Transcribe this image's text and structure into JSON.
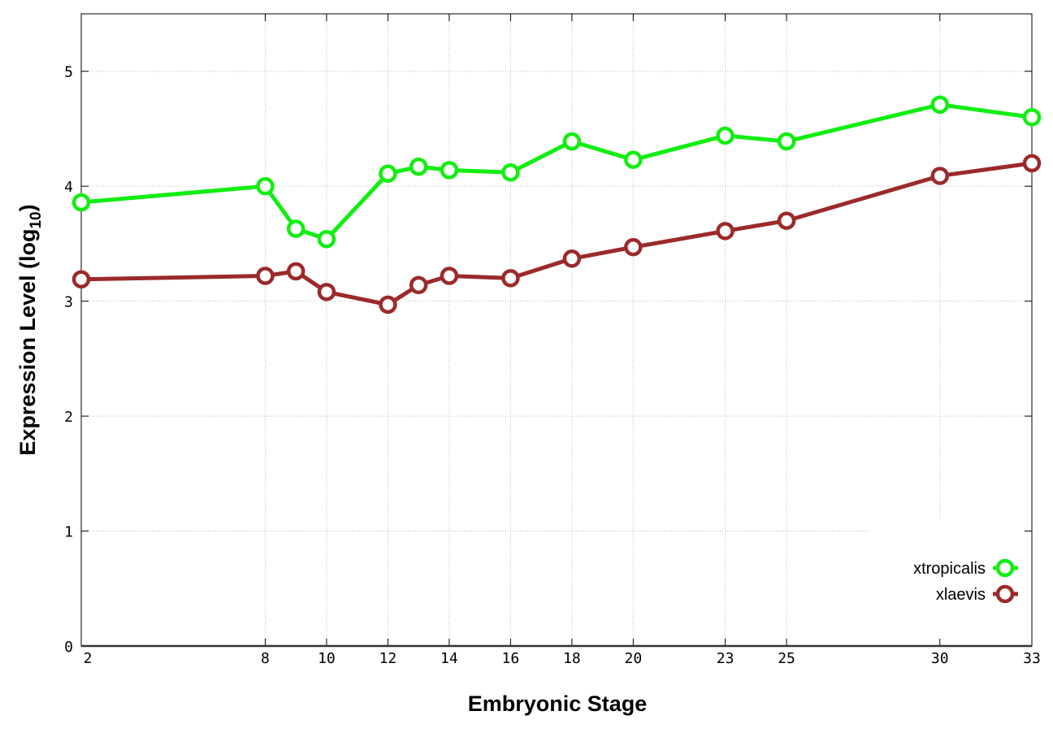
{
  "chart_data": {
    "type": "line",
    "title": "",
    "xlabel": "Embryonic Stage",
    "ylabel": "Expression Level (log",
    "ylabel_subscript": "10",
    "ylabel_suffix": ")",
    "xlim": [
      2,
      33
    ],
    "ylim": [
      0,
      5.5
    ],
    "xticks": [
      2,
      8,
      10,
      12,
      14,
      16,
      18,
      20,
      23,
      25,
      30,
      33
    ],
    "yticks": [
      0,
      1,
      2,
      3,
      4,
      5
    ],
    "grid": true,
    "legend_position": "bottom-right",
    "x": [
      2,
      8,
      9,
      10,
      12,
      13,
      14,
      16,
      18,
      20,
      23,
      25,
      30,
      33
    ],
    "series": [
      {
        "name": "xtropicalis",
        "color": "#11ee11",
        "values": [
          3.86,
          4.0,
          3.63,
          3.54,
          4.11,
          4.17,
          4.14,
          4.12,
          4.39,
          4.23,
          4.44,
          4.39,
          4.71,
          4.6
        ]
      },
      {
        "name": "xlaevis",
        "color": "#9b2a2a",
        "values": [
          3.19,
          3.22,
          3.26,
          3.08,
          2.97,
          3.14,
          3.22,
          3.2,
          3.37,
          3.47,
          3.61,
          3.7,
          4.09,
          4.2
        ]
      }
    ]
  }
}
